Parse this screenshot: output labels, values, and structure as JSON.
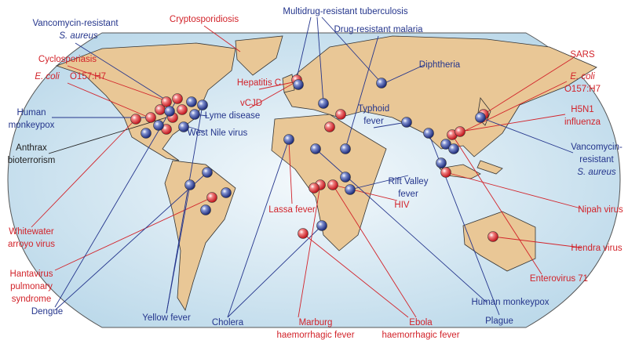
{
  "map": {
    "labels": [
      {
        "lines": [
          "Vancomycin-resistant",
          "S. aureus"
        ],
        "color": "#24358c"
      },
      {
        "lines": [
          "Cryptosporidiosis"
        ],
        "color": "#d2232a"
      },
      {
        "lines": [
          "Multidrug-resistant tuberculosis"
        ],
        "color": "#24358c"
      },
      {
        "lines": [
          "Drug-resistant malaria"
        ],
        "color": "#24358c"
      },
      {
        "lines": [
          "Cyclosporiasis"
        ],
        "color": "#d2232a"
      },
      {
        "lines": [
          "E. coli",
          "O157:H7"
        ],
        "color": "#d2232a"
      },
      {
        "lines": [
          "Hepatitis C"
        ],
        "color": "#d2232a"
      },
      {
        "lines": [
          "Diphtheria"
        ],
        "color": "#24358c"
      },
      {
        "lines": [
          "SARS"
        ],
        "color": "#d2232a"
      },
      {
        "lines": [
          "E. coli",
          "O157:H7"
        ],
        "color": "#d2232a"
      },
      {
        "lines": [
          "Human",
          "monkeypox"
        ],
        "color": "#24358c"
      },
      {
        "lines": [
          "vCJD"
        ],
        "color": "#d2232a"
      },
      {
        "lines": [
          "Lyme disease"
        ],
        "color": "#24358c"
      },
      {
        "lines": [
          "Typhoid",
          "fever"
        ],
        "color": "#24358c"
      },
      {
        "lines": [
          "H5N1",
          "influenza"
        ],
        "color": "#d2232a"
      },
      {
        "lines": [
          "West Nile virus"
        ],
        "color": "#24358c"
      },
      {
        "lines": [
          "Anthrax",
          "bioterrorism"
        ],
        "color": "#222222"
      },
      {
        "lines": [
          "Vancomycin-",
          "resistant",
          "S. aureus"
        ],
        "color": "#24358c"
      },
      {
        "lines": [
          "Rift Valley",
          "fever"
        ],
        "color": "#24358c"
      },
      {
        "lines": [
          "Lassa fever"
        ],
        "color": "#d2232a"
      },
      {
        "lines": [
          "HIV"
        ],
        "color": "#d2232a"
      },
      {
        "lines": [
          "Nipah virus"
        ],
        "color": "#d2232a"
      },
      {
        "lines": [
          "Whitewater",
          "arroyo virus"
        ],
        "color": "#d2232a"
      },
      {
        "lines": [
          "Hendra virus"
        ],
        "color": "#d2232a"
      },
      {
        "lines": [
          "Hantavirus",
          "pulmonary",
          "syndrome"
        ],
        "color": "#d2232a"
      },
      {
        "lines": [
          "Enterovirus 71"
        ],
        "color": "#d2232a"
      },
      {
        "lines": [
          "Human monkeypox"
        ],
        "color": "#24358c"
      },
      {
        "lines": [
          "Dengue"
        ],
        "color": "#24358c"
      },
      {
        "lines": [
          "Yellow fever"
        ],
        "color": "#24358c"
      },
      {
        "lines": [
          "Cholera"
        ],
        "color": "#24358c"
      },
      {
        "lines": [
          "Plague"
        ],
        "color": "#24358c"
      },
      {
        "lines": [
          "Marburg",
          "haemorrhagic fever"
        ],
        "color": "#d2232a"
      },
      {
        "lines": [
          "Ebola",
          "haemorrhagic fever"
        ],
        "color": "#d2232a"
      }
    ]
  }
}
